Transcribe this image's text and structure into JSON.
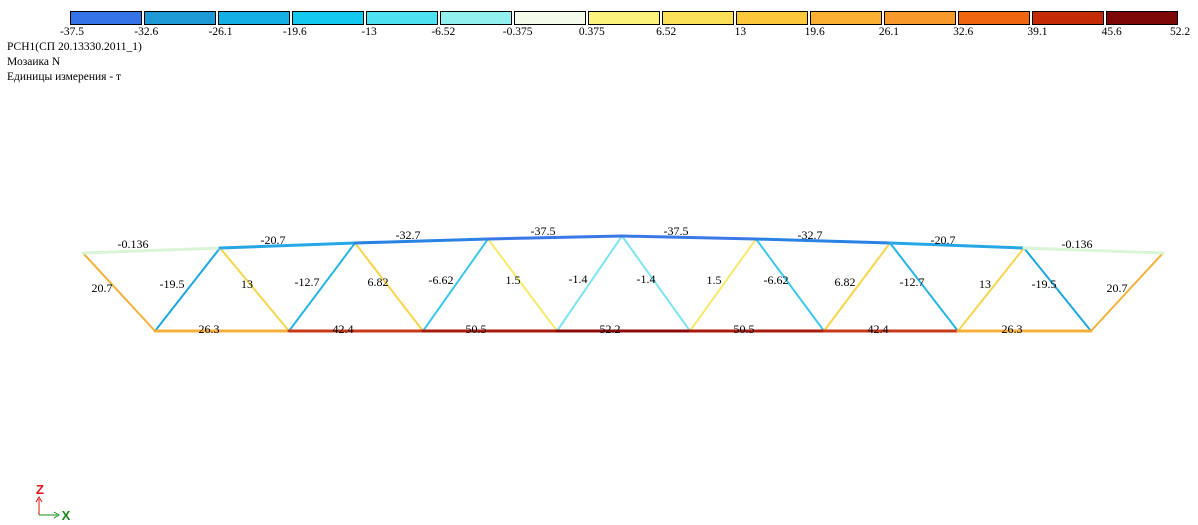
{
  "legend": {
    "colors": [
      "#3573e9",
      "#1d9ad6",
      "#13b0e3",
      "#14c9ef",
      "#4ee1f2",
      "#92f0ee",
      "#f3fbea",
      "#fbf37c",
      "#fbe15a",
      "#fbc73b",
      "#f9b033",
      "#f79a2b",
      "#f0650f",
      "#c42a06",
      "#7d0606"
    ],
    "labels": [
      "-37.5",
      "-32.6",
      "-26.1",
      "-19.6",
      "-13",
      "-6.52",
      "-0.375",
      "0.375",
      "6.52",
      "13",
      "19.6",
      "26.1",
      "32.6",
      "39.1",
      "45.6",
      "52.2"
    ]
  },
  "header": {
    "load_case": "РСН1(СП 20.13330.2011_1)",
    "mosaic": "Мозаика N",
    "units": "Единицы измерения - т"
  },
  "truss": {
    "top_chord": [
      {
        "value": -0.136,
        "label": "-0.136",
        "color": "#d9f5d6"
      },
      {
        "value": -20.7,
        "label": "-20.7",
        "color": "#27a6e6"
      },
      {
        "value": -32.7,
        "label": "-32.7",
        "color": "#2a82e5"
      },
      {
        "value": -37.5,
        "label": "-37.5",
        "color": "#3a78e8"
      },
      {
        "value": -37.5,
        "label": "-37.5",
        "color": "#3a78e8"
      },
      {
        "value": -32.7,
        "label": "-32.7",
        "color": "#2a82e5"
      },
      {
        "value": -20.7,
        "label": "-20.7",
        "color": "#27a6e6"
      },
      {
        "value": -0.136,
        "label": "-0.136",
        "color": "#d9f5d6"
      }
    ],
    "bottom_chord": [
      {
        "value": 26.3,
        "label": "26.3",
        "color": "#f4b03a"
      },
      {
        "value": 42.4,
        "label": "42.4",
        "color": "#c8381a"
      },
      {
        "value": 50.5,
        "label": "50.5",
        "color": "#a81a0c"
      },
      {
        "value": 52.2,
        "label": "52.2",
        "color": "#8b0a0a"
      },
      {
        "value": 50.5,
        "label": "50.5",
        "color": "#a81a0c"
      },
      {
        "value": 42.4,
        "label": "42.4",
        "color": "#c8381a"
      },
      {
        "value": 26.3,
        "label": "26.3",
        "color": "#f4b03a"
      }
    ],
    "end_posts": [
      {
        "value": 20.7,
        "label": "20.7",
        "color": "#f4b03a"
      },
      {
        "value": 20.7,
        "label": "20.7",
        "color": "#f4b03a"
      }
    ],
    "diagonals": [
      {
        "value": -19.5,
        "label": "-19.5",
        "color": "#1aa8e0"
      },
      {
        "value": 13,
        "label": "13",
        "color": "#f7d54a"
      },
      {
        "value": -12.7,
        "label": "-12.7",
        "color": "#27b5e8"
      },
      {
        "value": 6.82,
        "label": "6.82",
        "color": "#f7d54a"
      },
      {
        "value": -6.62,
        "label": "-6.62",
        "color": "#3cc8ee"
      },
      {
        "value": 1.5,
        "label": "1.5",
        "color": "#f7ea6a"
      },
      {
        "value": -1.4,
        "label": "-1.4",
        "color": "#7ee4f0"
      },
      {
        "value": -1.4,
        "label": "-1.4",
        "color": "#7ee4f0"
      },
      {
        "value": 1.5,
        "label": "1.5",
        "color": "#f7ea6a"
      },
      {
        "value": -6.62,
        "label": "-6.62",
        "color": "#3cc8ee"
      },
      {
        "value": 6.82,
        "label": "6.82",
        "color": "#f7d54a"
      },
      {
        "value": -12.7,
        "label": "-12.7",
        "color": "#27b5e8"
      },
      {
        "value": 13,
        "label": "13",
        "color": "#f7d54a"
      },
      {
        "value": -19.5,
        "label": "-19.5",
        "color": "#1aa8e0"
      }
    ]
  },
  "axes": {
    "z_label": "Z",
    "x_label": "X",
    "z_color": "#e01010",
    "x_color": "#1a8a1a"
  }
}
